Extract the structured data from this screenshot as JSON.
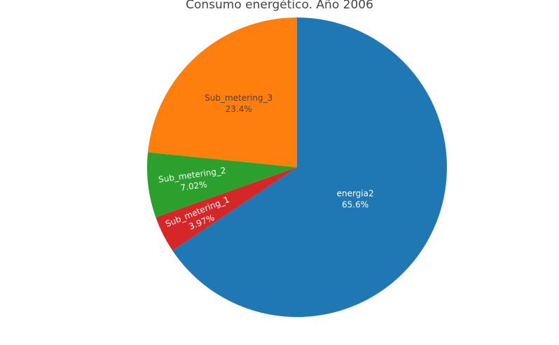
{
  "chart_data": {
    "type": "pie",
    "title": "Consumo energético. Año 2006",
    "slices": [
      {
        "label": "energia2",
        "percent_label": "65.6%",
        "value": 65.6,
        "color": "#1f77b4",
        "text_color": "#ffffff"
      },
      {
        "label": "Sub_metering_1",
        "percent_label": "3.97%",
        "value": 3.97,
        "color": "#d62728",
        "text_color": "#ffffff"
      },
      {
        "label": "Sub_metering_2",
        "percent_label": "7.02%",
        "value": 7.02,
        "color": "#2ca02c",
        "text_color": "#ffffff"
      },
      {
        "label": "Sub_metering_3",
        "percent_label": "23.4%",
        "value": 23.4,
        "color": "#ff7f0e",
        "text_color": "#444444"
      }
    ],
    "direction": "clockwise",
    "start": "12 o'clock",
    "legend": "none"
  }
}
